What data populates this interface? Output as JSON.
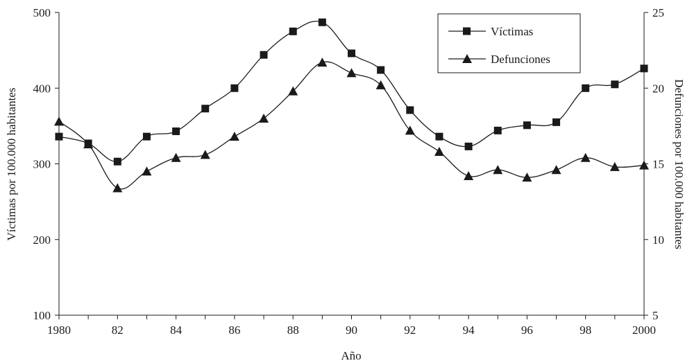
{
  "chart_data": {
    "type": "line",
    "title": "",
    "xlabel": "Año",
    "ylabel_left": "Víctimas por 100.000 habitantes",
    "ylabel_right": "Defunciones por 100.000 habitantes",
    "x": [
      1980,
      1981,
      1982,
      1983,
      1984,
      1985,
      1986,
      1987,
      1988,
      1989,
      1990,
      1991,
      1992,
      1993,
      1994,
      1995,
      1996,
      1997,
      1998,
      1999,
      2000
    ],
    "xlim": [
      1980,
      2000
    ],
    "x_ticks": [
      1980,
      1982,
      1984,
      1986,
      1988,
      1990,
      1992,
      1994,
      1996,
      1998,
      2000
    ],
    "x_tick_labels": [
      "1980",
      "82",
      "84",
      "86",
      "88",
      "90",
      "92",
      "94",
      "96",
      "98",
      "2000"
    ],
    "ylim_left": [
      100,
      500
    ],
    "y_ticks_left": [
      100,
      200,
      300,
      400,
      500
    ],
    "y_tick_labels_left": [
      "100",
      "200",
      "300",
      "400",
      "500"
    ],
    "ylim_right": [
      5,
      25
    ],
    "y_ticks_right": [
      5,
      10,
      15,
      20,
      25
    ],
    "y_tick_labels_right": [
      "5",
      "10",
      "15",
      "20",
      "25"
    ],
    "grid": false,
    "legend_position": "top-right",
    "series": [
      {
        "name": "Víctimas",
        "axis": "left",
        "marker": "square",
        "values": [
          336,
          327,
          303,
          336,
          343,
          373,
          400,
          444,
          475,
          487,
          446,
          424,
          371,
          336,
          323,
          344,
          351,
          355,
          400,
          405,
          426
        ]
      },
      {
        "name": "Defunciones",
        "axis": "right",
        "marker": "triangle",
        "values": [
          17.8,
          16.3,
          13.4,
          14.5,
          15.4,
          15.6,
          16.8,
          18.0,
          19.8,
          21.7,
          21.0,
          20.2,
          17.2,
          15.8,
          14.2,
          14.6,
          14.1,
          14.6,
          15.4,
          14.8,
          14.9
        ]
      }
    ],
    "colors": {
      "line": "#1a1a1a",
      "marker": "#1a1a1a"
    }
  }
}
